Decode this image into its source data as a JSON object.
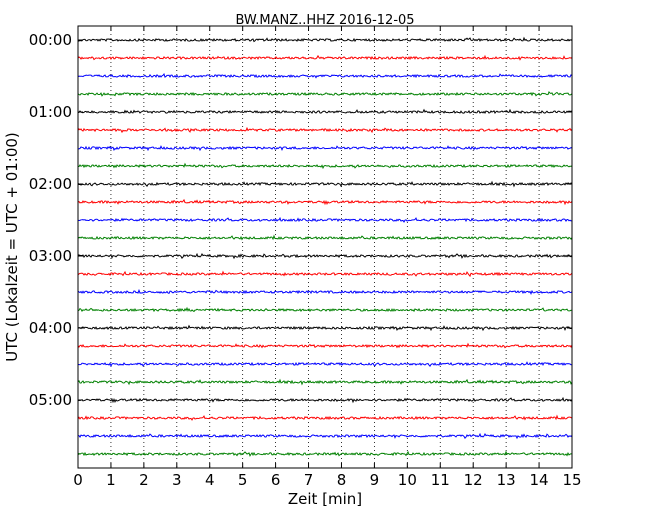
{
  "chart_data": {
    "type": "line",
    "title": "BW.MANZ..HHZ 2016-12-05",
    "xlabel": "Zeit  [min]",
    "ylabel": "UTC (Lokalzeit = UTC + 01:00)",
    "xlim": [
      0,
      15
    ],
    "x_ticks": [
      "0",
      "1",
      "2",
      "3",
      "4",
      "5",
      "6",
      "7",
      "8",
      "9",
      "10",
      "11",
      "12",
      "13",
      "14",
      "15"
    ],
    "row_interval_minutes": 15,
    "y_tick_labels": [
      "00:00",
      "01:00",
      "02:00",
      "03:00",
      "04:00",
      "05:00"
    ],
    "grid": "vertical-dotted",
    "trace_colors": [
      "#000000",
      "#ff0000",
      "#0000ff",
      "#008000"
    ],
    "series": [
      {
        "start": "00:00",
        "color": "#000000"
      },
      {
        "start": "00:15",
        "color": "#ff0000"
      },
      {
        "start": "00:30",
        "color": "#0000ff"
      },
      {
        "start": "00:45",
        "color": "#008000"
      },
      {
        "start": "01:00",
        "color": "#000000"
      },
      {
        "start": "01:15",
        "color": "#ff0000"
      },
      {
        "start": "01:30",
        "color": "#0000ff"
      },
      {
        "start": "01:45",
        "color": "#008000"
      },
      {
        "start": "02:00",
        "color": "#000000"
      },
      {
        "start": "02:15",
        "color": "#ff0000"
      },
      {
        "start": "02:30",
        "color": "#0000ff"
      },
      {
        "start": "02:45",
        "color": "#008000"
      },
      {
        "start": "03:00",
        "color": "#000000"
      },
      {
        "start": "03:15",
        "color": "#ff0000"
      },
      {
        "start": "03:30",
        "color": "#0000ff"
      },
      {
        "start": "03:45",
        "color": "#008000"
      },
      {
        "start": "04:00",
        "color": "#000000"
      },
      {
        "start": "04:15",
        "color": "#ff0000"
      },
      {
        "start": "04:30",
        "color": "#0000ff"
      },
      {
        "start": "04:45",
        "color": "#008000"
      },
      {
        "start": "05:00",
        "color": "#000000"
      },
      {
        "start": "05:15",
        "color": "#ff0000"
      },
      {
        "start": "05:30",
        "color": "#0000ff"
      },
      {
        "start": "05:45",
        "color": "#008000"
      }
    ]
  }
}
